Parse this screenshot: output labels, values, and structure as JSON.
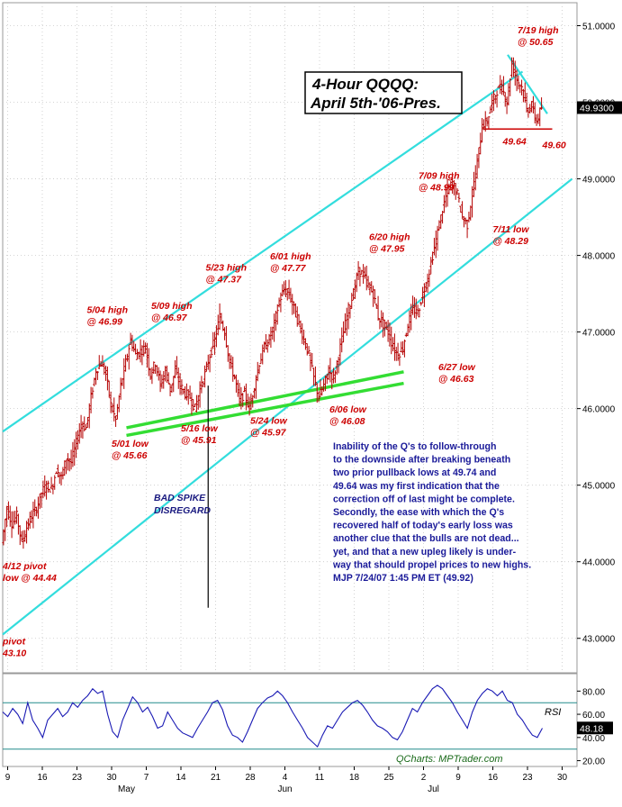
{
  "chart_data": [
    {
      "type": "candlestick",
      "title": "4-Hour QQQQ:",
      "subtitle": "April 5th-'06-Pres.",
      "ylim": [
        42.55,
        51.3
      ],
      "y_ticks": [
        "51.0000",
        "50.0000",
        "49.0000",
        "48.0000",
        "47.0000",
        "46.0000",
        "45.0000",
        "44.0000",
        "43.0000"
      ],
      "last_price": "49.9300",
      "x_ticks": [
        {
          "label": "9",
          "x": 0
        },
        {
          "label": "16",
          "x": 7
        },
        {
          "label": "23",
          "x": 14
        },
        {
          "label": "30",
          "x": 21
        },
        {
          "label": "7",
          "x": 28
        },
        {
          "label": "14",
          "x": 35
        },
        {
          "label": "21",
          "x": 42
        },
        {
          "label": "28",
          "x": 49
        },
        {
          "label": "4",
          "x": 56
        },
        {
          "label": "11",
          "x": 63
        },
        {
          "label": "18",
          "x": 70
        },
        {
          "label": "25",
          "x": 77
        },
        {
          "label": "2",
          "x": 84
        },
        {
          "label": "9",
          "x": 91
        },
        {
          "label": "16",
          "x": 98
        },
        {
          "label": "23",
          "x": 105
        },
        {
          "label": "30",
          "x": 112
        }
      ],
      "month_labels": [
        {
          "label": "May",
          "x": 24
        },
        {
          "label": "Jun",
          "x": 56
        },
        {
          "label": "Jul",
          "x": 86
        }
      ],
      "x_range": [
        -1,
        115
      ],
      "price_path": [
        [
          -1,
          44.25
        ],
        [
          0,
          44.7
        ],
        [
          1,
          44.5
        ],
        [
          2,
          44.6
        ],
        [
          3,
          44.25
        ],
        [
          4,
          44.45
        ],
        [
          5,
          44.6
        ],
        [
          6,
          44.7
        ],
        [
          7,
          44.9
        ],
        [
          8,
          45.0
        ],
        [
          9,
          44.95
        ],
        [
          10,
          45.2
        ],
        [
          11,
          45.1
        ],
        [
          12,
          45.35
        ],
        [
          13,
          45.3
        ],
        [
          14,
          45.55
        ],
        [
          15,
          45.8
        ],
        [
          16,
          45.75
        ],
        [
          17,
          46.15
        ],
        [
          18,
          46.5
        ],
        [
          19,
          46.6
        ],
        [
          20,
          46.45
        ],
        [
          21,
          46.05
        ],
        [
          22,
          45.85
        ],
        [
          23,
          46.3
        ],
        [
          24,
          46.6
        ],
        [
          25,
          46.9
        ],
        [
          26,
          46.7
        ],
        [
          27,
          46.75
        ],
        [
          28,
          46.8
        ],
        [
          29,
          46.45
        ],
        [
          30,
          46.6
        ],
        [
          31,
          46.3
        ],
        [
          32,
          46.5
        ],
        [
          33,
          46.25
        ],
        [
          34,
          46.5
        ],
        [
          35,
          46.3
        ],
        [
          36,
          46.2
        ],
        [
          37,
          46.15
        ],
        [
          38,
          46.0
        ],
        [
          39,
          46.25
        ],
        [
          40,
          46.45
        ],
        [
          41,
          46.7
        ],
        [
          42,
          46.9
        ],
        [
          43,
          47.2
        ],
        [
          44,
          47.0
        ],
        [
          45,
          46.6
        ],
        [
          46,
          46.4
        ],
        [
          47,
          46.1
        ],
        [
          48,
          46.2
        ],
        [
          49,
          46.0
        ],
        [
          50,
          46.3
        ],
        [
          51,
          46.6
        ],
        [
          52,
          46.8
        ],
        [
          53,
          46.9
        ],
        [
          54,
          47.1
        ],
        [
          55,
          47.4
        ],
        [
          56,
          47.55
        ],
        [
          57,
          47.5
        ],
        [
          58,
          47.3
        ],
        [
          59,
          47.1
        ],
        [
          60,
          46.9
        ],
        [
          61,
          46.7
        ],
        [
          62,
          46.4
        ],
        [
          63,
          46.15
        ],
        [
          64,
          46.3
        ],
        [
          65,
          46.5
        ],
        [
          66,
          46.4
        ],
        [
          67,
          46.7
        ],
        [
          68,
          47.0
        ],
        [
          69,
          47.3
        ],
        [
          70,
          47.5
        ],
        [
          71,
          47.8
        ],
        [
          72,
          47.75
        ],
        [
          73,
          47.6
        ],
        [
          74,
          47.5
        ],
        [
          75,
          47.2
        ],
        [
          76,
          47.1
        ],
        [
          77,
          47.0
        ],
        [
          78,
          46.8
        ],
        [
          79,
          46.7
        ],
        [
          80,
          46.8
        ],
        [
          81,
          47.1
        ],
        [
          82,
          47.3
        ],
        [
          83,
          47.25
        ],
        [
          84,
          47.5
        ],
        [
          85,
          47.7
        ],
        [
          86,
          48.0
        ],
        [
          87,
          48.3
        ],
        [
          88,
          48.6
        ],
        [
          89,
          48.85
        ],
        [
          90,
          48.95
        ],
        [
          91,
          48.8
        ],
        [
          92,
          48.5
        ],
        [
          93,
          48.4
        ],
        [
          94,
          48.8
        ],
        [
          95,
          49.2
        ],
        [
          96,
          49.7
        ],
        [
          97,
          49.75
        ],
        [
          98,
          50.0
        ],
        [
          99,
          50.15
        ],
        [
          100,
          50.2
        ],
        [
          101,
          50.0
        ],
        [
          102,
          50.5
        ],
        [
          103,
          50.3
        ],
        [
          104,
          50.2
        ],
        [
          105,
          49.9
        ],
        [
          106,
          49.95
        ],
        [
          107,
          49.75
        ],
        [
          108,
          49.93
        ]
      ],
      "bad_spike": {
        "x": 40.5,
        "high": 46.3,
        "low": 43.4
      },
      "trendlines": [
        {
          "name": "upper-channel",
          "color": "#33dddd",
          "from": [
            -1,
            45.7
          ],
          "to": [
            104,
            50.4
          ]
        },
        {
          "name": "lower-channel",
          "color": "#33dddd",
          "from": [
            -1,
            43.05
          ],
          "to": [
            114,
            49.0
          ]
        },
        {
          "name": "support-a",
          "color": "#33dd33",
          "from": [
            24,
            45.75
          ],
          "to": [
            80,
            46.48
          ]
        },
        {
          "name": "support-b",
          "color": "#33dd33",
          "from": [
            24,
            45.65
          ],
          "to": [
            80,
            46.33
          ]
        },
        {
          "name": "resistance-short",
          "color": "#33dddd",
          "from": [
            101,
            50.62
          ],
          "to": [
            109,
            49.85
          ]
        },
        {
          "name": "support-short",
          "color": "#cc0000",
          "from": [
            96,
            49.65
          ],
          "to": [
            110,
            49.65
          ]
        }
      ],
      "annotations": [
        {
          "text": [
            "7/19 high",
            "@ 50.65"
          ],
          "x": 103,
          "y": 50.9
        },
        {
          "text": [
            "49.64"
          ],
          "x": 100,
          "y": 49.45
        },
        {
          "text": [
            "49.60"
          ],
          "x": 108,
          "y": 49.4
        },
        {
          "text": [
            "7/09 high",
            "@ 48.99"
          ],
          "x": 83,
          "y": 49.0
        },
        {
          "text": [
            "7/11 low",
            "@ 48.29"
          ],
          "x": 98,
          "y": 48.3
        },
        {
          "text": [
            "6/20 high",
            "@ 47.95"
          ],
          "x": 73,
          "y": 48.2
        },
        {
          "text": [
            "6/01 high",
            "@ 47.77"
          ],
          "x": 53,
          "y": 47.95
        },
        {
          "text": [
            "5/23 high",
            "@ 47.37"
          ],
          "x": 40,
          "y": 47.8
        },
        {
          "text": [
            "5/09 high",
            "@ 46.97"
          ],
          "x": 29,
          "y": 47.3
        },
        {
          "text": [
            "5/04 high",
            "@ 46.99"
          ],
          "x": 16,
          "y": 47.25
        },
        {
          "text": [
            "6/27 low",
            "@ 46.63"
          ],
          "x": 87,
          "y": 46.5
        },
        {
          "text": [
            "6/06 low",
            "@ 46.08"
          ],
          "x": 65,
          "y": 45.95
        },
        {
          "text": [
            "5/24 low",
            "@ 45.97"
          ],
          "x": 49,
          "y": 45.8
        },
        {
          "text": [
            "5/16 low",
            "@ 45.91"
          ],
          "x": 35,
          "y": 45.7
        },
        {
          "text": [
            "5/01 low",
            "@ 45.66"
          ],
          "x": 21,
          "y": 45.5
        },
        {
          "text": [
            "4/12 pivot",
            "low @ 44.44"
          ],
          "x": -1,
          "y": 43.9
        },
        {
          "text": [
            "pivot",
            "43.10"
          ],
          "x": -1,
          "y": 42.92
        }
      ],
      "bad_spike_label": [
        "BAD SPIKE",
        "DISREGARD"
      ],
      "commentary": [
        "Inability of the Q's to follow-through",
        "to the downside after breaking beneath",
        "two prior pullback lows at 49.74 and",
        "49.64 was my first indication that the",
        "correction off of last might be complete.",
        "Secondly, the ease with which the Q's",
        "recovered half of today's early loss was",
        "another clue that the bulls are not dead...",
        "yet, and that a new upleg likely is under-",
        "way that should propel prices to new highs.",
        "MJP  7/24/07 1:45 PM ET   (49.92)"
      ]
    },
    {
      "type": "line",
      "name": "RSI",
      "ylim": [
        15,
        95
      ],
      "y_ticks": [
        "80.00",
        "60.00",
        "40.00",
        "20.00"
      ],
      "reference_lines": [
        70,
        30
      ],
      "last_value": "48.18",
      "values": [
        62,
        58,
        65,
        60,
        52,
        70,
        55,
        48,
        40,
        55,
        60,
        65,
        58,
        62,
        70,
        66,
        72,
        76,
        82,
        78,
        80,
        60,
        45,
        40,
        55,
        65,
        75,
        70,
        62,
        66,
        58,
        48,
        50,
        62,
        55,
        48,
        44,
        42,
        40,
        48,
        55,
        62,
        70,
        72,
        64,
        50,
        42,
        40,
        36,
        45,
        55,
        65,
        70,
        74,
        76,
        80,
        76,
        70,
        62,
        55,
        48,
        40,
        36,
        32,
        42,
        50,
        48,
        55,
        62,
        66,
        70,
        72,
        68,
        62,
        55,
        50,
        48,
        45,
        40,
        38,
        45,
        55,
        65,
        62,
        70,
        76,
        82,
        85,
        82,
        76,
        70,
        62,
        55,
        48,
        62,
        72,
        78,
        82,
        80,
        76,
        80,
        72,
        70,
        60,
        55,
        48,
        42,
        40,
        48
      ]
    }
  ],
  "footer": {
    "brand": "QCharts: MPTrader.com"
  },
  "colors": {
    "candle": "#b40000",
    "channel": "#33dddd",
    "support": "#33dd33",
    "annotation": "#cc0000",
    "commentary": "#1a1a99",
    "rsi_line": "#1a1ab4"
  }
}
